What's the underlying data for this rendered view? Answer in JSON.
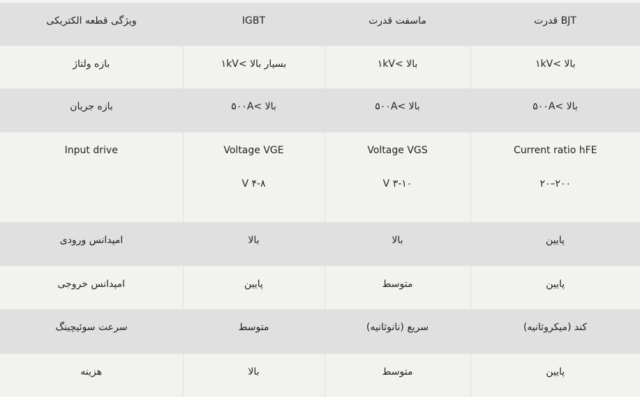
{
  "headers": [
    "ویژگی قطعه الکتریکی",
    "IGBT",
    "ماسفت قدرت",
    "BJT قدرت"
  ],
  "rows": [
    [
      "بازه ولتاژ",
      "بسیار بالا >۱kV",
      "بالا >۱kV",
      "بالا >۱kV"
    ],
    [
      "بازه جریان",
      "بالا >۵۰۰A",
      "بالا >۵۰۰A",
      "بالا >۵۰۰A"
    ],
    [
      "Input drive",
      "Voltage VGE",
      "Voltage VGS",
      "Current ratio hFE"
    ],
    [
      "امپدانس ورودی",
      "بالا",
      "بالا",
      "پایین"
    ],
    [
      "امپدانس خروجی",
      "پایین",
      "متوسط",
      "پایین"
    ],
    [
      "سرعت سوئیچینگ",
      "متوسط",
      "سریع (نانوثانیه)",
      "کند (میکروثانیه)"
    ],
    [
      "هزینه",
      "بالا",
      "متوسط",
      "پایین"
    ]
  ],
  "input_drive_values": [
    "",
    "V ۴-۸",
    "V ۳-۱۰",
    "۲۰۰–۲۰"
  ]
}
